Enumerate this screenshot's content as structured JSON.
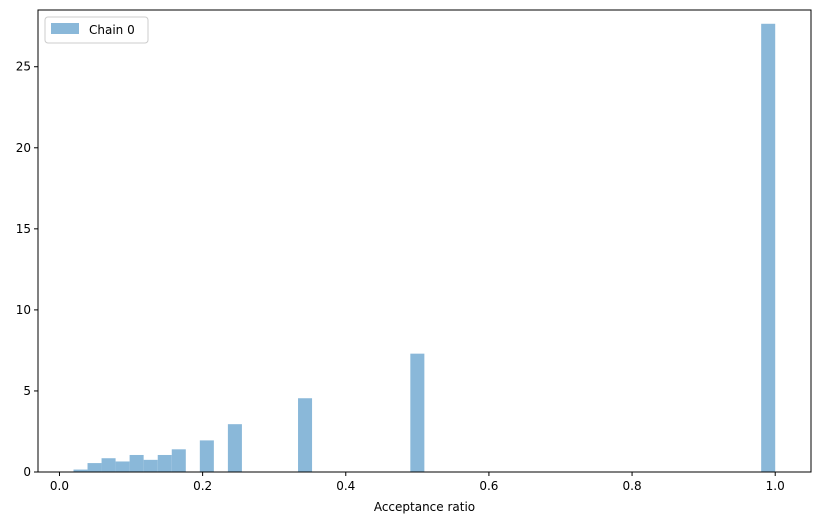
{
  "chart_data": {
    "type": "bar",
    "subtype": "histogram",
    "xlabel": "Acceptance ratio",
    "ylabel": "",
    "title": "",
    "xlim": [
      -0.03,
      1.05
    ],
    "ylim": [
      0,
      28.5
    ],
    "xticks": [
      "0.0",
      "0.2",
      "0.4",
      "0.6",
      "0.8",
      "1.0"
    ],
    "xtick_values": [
      0.0,
      0.2,
      0.4,
      0.6,
      0.8,
      1.0
    ],
    "yticks": [
      "0",
      "5",
      "10",
      "15",
      "20",
      "25"
    ],
    "ytick_values": [
      0,
      5,
      10,
      15,
      20,
      25
    ],
    "bar_color": "#8ab8d9",
    "grid": false,
    "legend": {
      "position": "top-left",
      "entries": [
        "Chain 0"
      ]
    },
    "series": [
      {
        "name": "Chain 0",
        "bins": [
          {
            "start": 0.0196,
            "end": 0.0392,
            "value": 0.15
          },
          {
            "start": 0.0392,
            "end": 0.0588,
            "value": 0.55
          },
          {
            "start": 0.0588,
            "end": 0.0784,
            "value": 0.85
          },
          {
            "start": 0.0784,
            "end": 0.098,
            "value": 0.65
          },
          {
            "start": 0.098,
            "end": 0.1176,
            "value": 1.05
          },
          {
            "start": 0.1176,
            "end": 0.1373,
            "value": 0.75
          },
          {
            "start": 0.1373,
            "end": 0.1569,
            "value": 1.05
          },
          {
            "start": 0.1569,
            "end": 0.1765,
            "value": 1.4
          },
          {
            "start": 0.1961,
            "end": 0.2157,
            "value": 1.95
          },
          {
            "start": 0.2353,
            "end": 0.2549,
            "value": 2.95
          },
          {
            "start": 0.3333,
            "end": 0.3529,
            "value": 4.55
          },
          {
            "start": 0.4902,
            "end": 0.5098,
            "value": 7.3
          },
          {
            "start": 0.9804,
            "end": 1.0,
            "value": 27.65
          }
        ]
      }
    ]
  }
}
